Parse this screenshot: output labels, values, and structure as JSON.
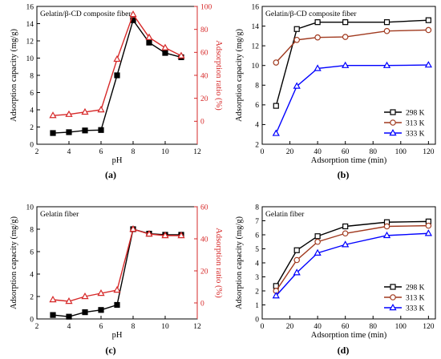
{
  "figure": {
    "panels": [
      {
        "panel_label": "(a)",
        "inset_title": "Gelatin/β-CD composite fiber",
        "xlabel": "pH",
        "ylabel": "Adsorption capacity (mg/g)",
        "y2label": "Adsorption ratio (%)",
        "xticks": [
          "2",
          "4",
          "6",
          "8",
          "10",
          "12"
        ],
        "yticks": [
          "0",
          "2",
          "4",
          "6",
          "8",
          "10",
          "12",
          "14",
          "16"
        ],
        "y2ticks": [
          "0",
          "20",
          "40",
          "60",
          "80",
          "100"
        ]
      },
      {
        "panel_label": "(b)",
        "inset_title": "Gelatin/β-CD composite fiber",
        "xlabel": "Adsorption time (min)",
        "ylabel": "Adsorption capacity (mg/g)",
        "xticks": [
          "0",
          "20",
          "40",
          "60",
          "80",
          "100",
          "120"
        ],
        "yticks": [
          "2",
          "4",
          "6",
          "8",
          "10",
          "12",
          "14",
          "16"
        ],
        "legend": [
          "298 K",
          "313 K",
          "333 K"
        ]
      },
      {
        "panel_label": "(c)",
        "inset_title": "Gelatin fiber",
        "xlabel": "pH",
        "ylabel": "Adsorption capacity (mg/g)",
        "y2label": "Adsorption ratio (%)",
        "xticks": [
          "2",
          "4",
          "6",
          "8",
          "10",
          "12"
        ],
        "yticks": [
          "0",
          "2",
          "4",
          "6",
          "8",
          "10"
        ],
        "y2ticks": [
          "0",
          "20",
          "40",
          "60"
        ]
      },
      {
        "panel_label": "(d)",
        "inset_title": "Gelatin fiber",
        "xlabel": "Adsorption time (min)",
        "ylabel": "Adsorption capacity (mg/g)",
        "xticks": [
          "0",
          "20",
          "40",
          "60",
          "80",
          "100",
          "120"
        ],
        "yticks": [
          "0",
          "1",
          "2",
          "3",
          "4",
          "5",
          "6",
          "7",
          "8"
        ],
        "legend": [
          "298 K",
          "313 K",
          "333 K"
        ]
      }
    ]
  },
  "colors": {
    "black": "#000000",
    "brown": "#a0391e",
    "red": "#d62828",
    "blue": "#0000ff"
  },
  "chart_data": [
    {
      "type": "line",
      "panel": "a",
      "x": [
        3,
        4,
        5,
        6,
        7,
        8,
        9,
        10,
        11
      ],
      "xlim": [
        2,
        12
      ],
      "ylim": [
        0,
        16
      ],
      "y2lim": [
        -20,
        100
      ],
      "grid": false,
      "series": [
        {
          "axis": "left",
          "marker": "filled-square",
          "color": "#000000",
          "values": [
            1.3,
            1.4,
            1.6,
            1.65,
            8.0,
            14.4,
            11.8,
            10.6,
            10.1
          ]
        },
        {
          "axis": "right",
          "marker": "open-triangle",
          "color": "#d62828",
          "values": [
            5,
            6,
            8,
            10,
            54,
            93,
            73,
            64,
            57
          ]
        }
      ]
    },
    {
      "type": "line",
      "panel": "b",
      "x": [
        10,
        25,
        40,
        60,
        90,
        120
      ],
      "xlim": [
        0,
        125
      ],
      "ylim": [
        2,
        16
      ],
      "grid": false,
      "legend_position": "bottom-right",
      "series": [
        {
          "name": "298 K",
          "marker": "square",
          "color": "#000000",
          "values": [
            5.9,
            13.7,
            14.4,
            14.4,
            14.4,
            14.6
          ]
        },
        {
          "name": "313 K",
          "marker": "circle",
          "color": "#a0391e",
          "values": [
            10.3,
            12.6,
            12.85,
            12.9,
            13.5,
            13.6
          ]
        },
        {
          "name": "333 K",
          "marker": "triangle",
          "color": "#0000ff",
          "values": [
            3.1,
            7.9,
            9.7,
            10.0,
            10.0,
            10.05
          ]
        }
      ]
    },
    {
      "type": "line",
      "panel": "c",
      "x": [
        3,
        4,
        5,
        6,
        7,
        8,
        9,
        10,
        11
      ],
      "xlim": [
        2,
        12
      ],
      "ylim": [
        0,
        10
      ],
      "y2lim": [
        -10,
        60
      ],
      "grid": false,
      "series": [
        {
          "axis": "left",
          "marker": "filled-square",
          "color": "#000000",
          "values": [
            0.35,
            0.2,
            0.6,
            0.8,
            1.25,
            8.0,
            7.6,
            7.5,
            7.5
          ]
        },
        {
          "axis": "right",
          "marker": "open-triangle",
          "color": "#d62828",
          "values": [
            2,
            1,
            4,
            6,
            8,
            46,
            43,
            42,
            42
          ]
        }
      ]
    },
    {
      "type": "line",
      "panel": "d",
      "x": [
        10,
        25,
        40,
        60,
        90,
        120
      ],
      "xlim": [
        0,
        125
      ],
      "ylim": [
        0,
        8
      ],
      "grid": false,
      "legend_position": "bottom-right",
      "series": [
        {
          "name": "298 K",
          "marker": "square",
          "color": "#000000",
          "values": [
            2.35,
            4.9,
            5.9,
            6.6,
            6.9,
            6.95
          ]
        },
        {
          "name": "313 K",
          "marker": "circle",
          "color": "#a0391e",
          "values": [
            2.0,
            4.2,
            5.5,
            6.1,
            6.6,
            6.65
          ]
        },
        {
          "name": "333 K",
          "marker": "triangle",
          "color": "#0000ff",
          "values": [
            1.65,
            3.3,
            4.7,
            5.3,
            5.95,
            6.1
          ]
        }
      ]
    }
  ]
}
